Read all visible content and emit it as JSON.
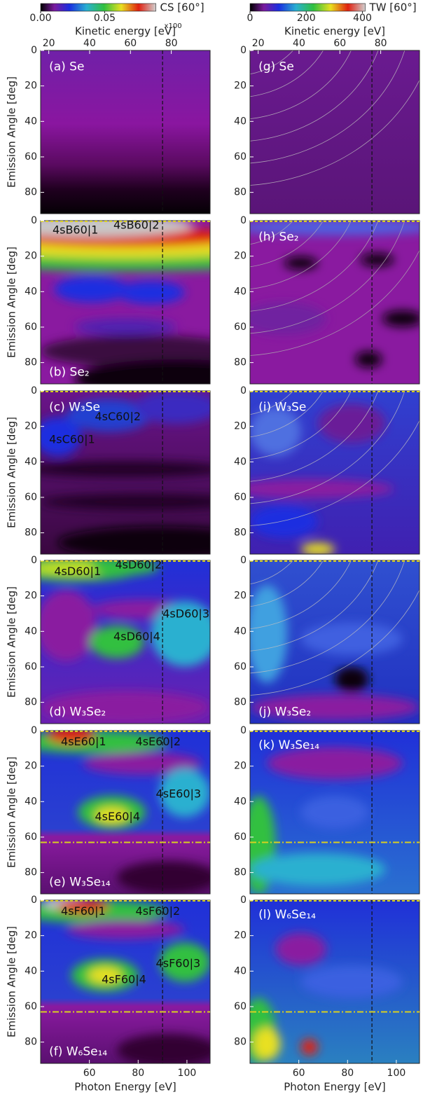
{
  "chart_data": [
    {
      "type": "heatmap",
      "label": "(a) Se",
      "ylabel": "Emission Angle [deg]",
      "ylim": [
        0,
        92
      ],
      "y_inverted": true,
      "yticks": [
        0,
        20,
        40,
        60,
        80
      ],
      "xlim": [
        40,
        109.5
      ],
      "x2lim": [
        16,
        99
      ],
      "x2ticks": [
        20,
        40,
        60,
        80
      ],
      "x2label": "Kinetic energy [eV]",
      "vline": 90,
      "colorbar": {
        "label": "CS [60°]",
        "lim": [
          0,
          0.09
        ],
        "ticks": [
          {
            "value": 0,
            "label": "0.00"
          },
          0.05
        ],
        "scale_note": "x100"
      }
    },
    {
      "type": "heatmap",
      "label": "(b) Se₂",
      "ylabel": "Emission Angle [deg]",
      "ylim": [
        0,
        92
      ],
      "y_inverted": true,
      "yticks": [
        0,
        20,
        40,
        60,
        80
      ],
      "xlim": [
        40,
        109.5
      ],
      "vline": 90,
      "annotations": [
        "4sB60|1",
        "4sB60|2"
      ]
    },
    {
      "type": "heatmap",
      "label": "(c) W₃Se",
      "ylabel": "Emission Angle [deg]",
      "ylim": [
        0,
        92
      ],
      "y_inverted": true,
      "yticks": [
        0,
        20,
        40,
        60,
        80
      ],
      "xlim": [
        40,
        109.5
      ],
      "vline": 90,
      "annotations": [
        "4sC60|1",
        "4sC60|2"
      ]
    },
    {
      "type": "heatmap",
      "label": "(d) W₃Se₂",
      "ylabel": "Emission Angle [deg]",
      "ylim": [
        0,
        92
      ],
      "y_inverted": true,
      "yticks": [
        0,
        20,
        40,
        60,
        80
      ],
      "xlim": [
        40,
        109.5
      ],
      "vline": 90,
      "annotations": [
        "4sD60|1",
        "4sD60|2",
        "4sD60|3",
        "4sD60|4"
      ]
    },
    {
      "type": "heatmap",
      "label": "(e) W₃Se₁₄",
      "ylabel": "Emission Angle [deg]",
      "ylim": [
        0,
        92
      ],
      "y_inverted": true,
      "yticks": [
        0,
        20,
        40,
        60,
        80
      ],
      "xlim": [
        40,
        109.5
      ],
      "vline": 90,
      "hline": 63,
      "annotations": [
        "4sE60|1",
        "4sE60|2",
        "4sE60|3",
        "4sE60|4"
      ]
    },
    {
      "type": "heatmap",
      "label": "(f) W₆Se₁₄",
      "ylabel": "Emission Angle [deg]",
      "ylim": [
        0,
        92
      ],
      "y_inverted": true,
      "yticks": [
        0,
        20,
        40,
        60,
        80
      ],
      "xlim": [
        40,
        109.5
      ],
      "xticks": [
        60,
        80,
        100
      ],
      "xlabel": "Photon Energy [eV]",
      "vline": 90,
      "hline": 63,
      "annotations": [
        "4sF60|1",
        "4sF60|2",
        "4sF60|3",
        "4sF60|4"
      ]
    },
    {
      "type": "heatmap",
      "label": "(g) Se",
      "ylim": [
        0,
        92
      ],
      "y_inverted": true,
      "yticks": [
        0,
        20,
        40,
        60,
        80
      ],
      "xlim": [
        40,
        109.5
      ],
      "x2lim": [
        16,
        99
      ],
      "x2ticks": [
        20,
        40,
        60,
        80
      ],
      "x2label": "Kinetic energy [eV]",
      "vline": 90,
      "colorbar": {
        "label": "TW [60°]",
        "lim": [
          0,
          410
        ],
        "ticks": [
          0,
          200,
          400
        ]
      }
    },
    {
      "type": "heatmap",
      "label": "(h) Se₂",
      "ylim": [
        0,
        92
      ],
      "y_inverted": true,
      "yticks": [
        0,
        20,
        40,
        60,
        80
      ],
      "xlim": [
        40,
        109.5
      ],
      "vline": 90
    },
    {
      "type": "heatmap",
      "label": "(i) W₃Se",
      "ylim": [
        0,
        92
      ],
      "y_inverted": true,
      "yticks": [
        0,
        20,
        40,
        60,
        80
      ],
      "xlim": [
        40,
        109.5
      ],
      "vline": 90
    },
    {
      "type": "heatmap",
      "label": "(j) W₃Se₂",
      "ylim": [
        0,
        92
      ],
      "y_inverted": true,
      "yticks": [
        0,
        20,
        40,
        60,
        80
      ],
      "xlim": [
        40,
        109.5
      ],
      "vline": 90
    },
    {
      "type": "heatmap",
      "label": "(k) W₃Se₁₄",
      "ylim": [
        0,
        92
      ],
      "y_inverted": true,
      "yticks": [
        0,
        20,
        40,
        60,
        80
      ],
      "xlim": [
        40,
        109.5
      ],
      "vline": 90,
      "hline": 63
    },
    {
      "type": "heatmap",
      "label": "(l) W₆Se₁₄",
      "ylim": [
        0,
        92
      ],
      "y_inverted": true,
      "yticks": [
        0,
        20,
        40,
        60,
        80
      ],
      "xlim": [
        40,
        109.5
      ],
      "xticks": [
        60,
        80,
        100
      ],
      "xlabel": "Photon Energy [eV]",
      "vline": 90,
      "hline": 63
    }
  ]
}
